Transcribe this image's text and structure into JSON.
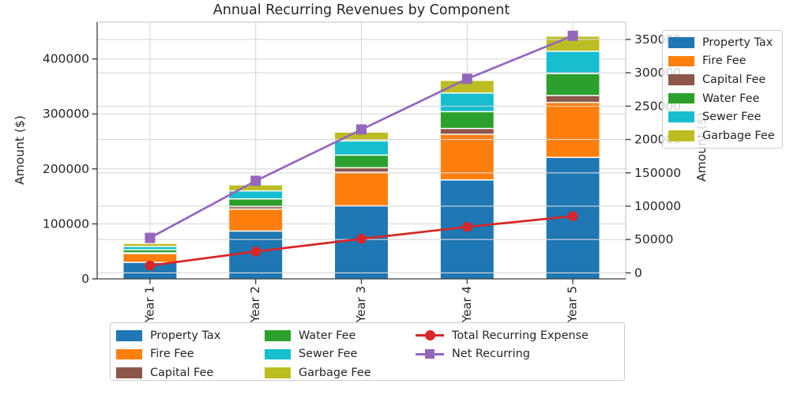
{
  "title": "Annual Recurring Revenues by Component",
  "axes": {
    "left": {
      "label": "Amount ($)",
      "ticks": [
        0,
        100000,
        200000,
        300000,
        400000
      ],
      "ylim": [
        0,
        467000
      ]
    },
    "right": {
      "label": "Amount ($)",
      "ticks": [
        0,
        50000,
        100000,
        150000,
        200000,
        250000,
        300000,
        350000
      ],
      "ylim": [
        -9000,
        376000
      ]
    },
    "x": {
      "categories": [
        "Year 1",
        "Year 2",
        "Year 3",
        "Year 4",
        "Year 5"
      ],
      "tick_rotation_deg": 90
    }
  },
  "chart_data": {
    "type": "bar",
    "subtype": "stacked-bars-with-overlay-lines",
    "title": "Annual Recurring Revenues by Component",
    "categories": [
      "Year 1",
      "Year 2",
      "Year 3",
      "Year 4",
      "Year 5"
    ],
    "stack_order_bottom_to_top": [
      "Property Tax",
      "Fire Fee",
      "Capital Fee",
      "Water Fee",
      "Sewer Fee",
      "Garbage Fee"
    ],
    "series": [
      {
        "name": "Property Tax",
        "color": "#1f77b4",
        "axis": "left",
        "values": [
          30000,
          87000,
          133000,
          180000,
          221000
        ]
      },
      {
        "name": "Fire Fee",
        "color": "#ff7f0e",
        "axis": "left",
        "values": [
          16000,
          40000,
          61000,
          83000,
          100000
        ]
      },
      {
        "name": "Capital Fee",
        "color": "#8c564b",
        "axis": "left",
        "values": [
          1500,
          4500,
          8000,
          10500,
          12500
        ]
      },
      {
        "name": "Water Fee",
        "color": "#2ca02c",
        "axis": "left",
        "values": [
          5500,
          14000,
          23000,
          30500,
          40000
        ]
      },
      {
        "name": "Sewer Fee",
        "color": "#17becf",
        "axis": "left",
        "values": [
          6000,
          14500,
          26000,
          34000,
          40500
        ]
      },
      {
        "name": "Garbage Fee",
        "color": "#bcbd22",
        "axis": "left",
        "values": [
          4500,
          10000,
          15000,
          22000,
          26500
        ]
      }
    ],
    "bar_totals": [
      63500,
      170000,
      266000,
      360000,
      440500
    ],
    "line_series": [
      {
        "name": "Total Recurring Expense",
        "color": "#d62728",
        "marker": "circle",
        "axis": "right",
        "values": [
          11000,
          32000,
          51000,
          69000,
          85000
        ]
      },
      {
        "name": "Net Recurring",
        "color": "#9467bd",
        "marker": "square",
        "axis": "right",
        "values": [
          52500,
          138000,
          215000,
          291000,
          355500
        ]
      }
    ],
    "xlabel": "",
    "ylabel_left": "Amount ($)",
    "ylabel_right": "Amount ($)",
    "grid": true,
    "legend_positions": [
      "upper right (bars only)",
      "below axes (all series)"
    ]
  },
  "legend_top_right": {
    "items": [
      {
        "label": "Property Tax",
        "color": "#1f77b4",
        "type": "patch"
      },
      {
        "label": "Fire Fee",
        "color": "#ff7f0e",
        "type": "patch"
      },
      {
        "label": "Capital Fee",
        "color": "#8c564b",
        "type": "patch"
      },
      {
        "label": "Water Fee",
        "color": "#2ca02c",
        "type": "patch"
      },
      {
        "label": "Sewer Fee",
        "color": "#17becf",
        "type": "patch"
      },
      {
        "label": "Garbage Fee",
        "color": "#bcbd22",
        "type": "patch"
      }
    ]
  },
  "legend_bottom": {
    "columns": [
      [
        {
          "label": "Property Tax",
          "color": "#1f77b4",
          "type": "patch"
        },
        {
          "label": "Fire Fee",
          "color": "#ff7f0e",
          "type": "patch"
        },
        {
          "label": "Capital Fee",
          "color": "#8c564b",
          "type": "patch"
        }
      ],
      [
        {
          "label": "Water Fee",
          "color": "#2ca02c",
          "type": "patch"
        },
        {
          "label": "Sewer Fee",
          "color": "#17becf",
          "type": "patch"
        },
        {
          "label": "Garbage Fee",
          "color": "#bcbd22",
          "type": "patch"
        }
      ],
      [
        {
          "label": "Total Recurring Expense",
          "color": "#d62728",
          "type": "line",
          "marker": "circle"
        },
        {
          "label": "Net Recurring",
          "color": "#9467bd",
          "type": "line",
          "marker": "square"
        }
      ]
    ]
  },
  "style": {
    "grid_color": "#d8d8d8",
    "spine_dark": "#3f3f3f",
    "spine_light": "#cccccc",
    "tick_color": "#333333",
    "text_color": "#262626",
    "segment_edge": "#ffffff",
    "background": "#ffffff"
  }
}
